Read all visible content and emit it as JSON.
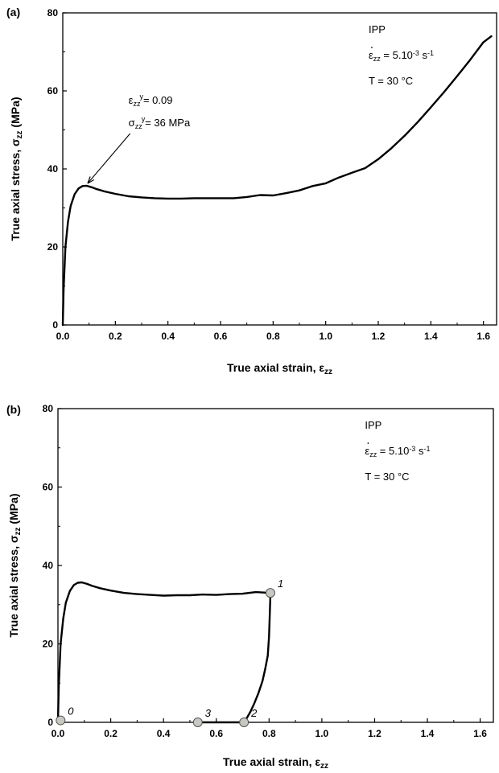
{
  "chart_data": [
    {
      "type": "line",
      "panel_label": "(a)",
      "xlabel": "True axial strain, ε",
      "xlabel_sub": "zz",
      "ylabel": "True axial stress, σ",
      "ylabel_sub": "zz",
      "ylabel_unit": " (MPa)",
      "xlim": [
        0,
        1.65
      ],
      "ylim": [
        0,
        80
      ],
      "xticks": [
        "0.0",
        "0.2",
        "0.4",
        "0.6",
        "0.8",
        "1.0",
        "1.2",
        "1.4",
        "1.6"
      ],
      "xtick_values": [
        0,
        0.2,
        0.4,
        0.6,
        0.8,
        1.0,
        1.2,
        1.4,
        1.6
      ],
      "yticks": [
        "0",
        "20",
        "40",
        "60",
        "80"
      ],
      "ytick_values": [
        0,
        20,
        40,
        60,
        80
      ],
      "grid": false,
      "legend": {
        "material": "IPP",
        "rate_prefix": "ε",
        "rate_sub": "zz",
        "rate_value": " = 5.10",
        "rate_exp": "-3",
        "rate_unit": " s",
        "rate_unit_exp": "-1",
        "temperature": "T = 30 °C"
      },
      "annotation": {
        "strain_symbol": "ε",
        "strain_sub": "zz",
        "strain_sup": "y",
        "strain_value": "= 0.09",
        "stress_symbol": "σ",
        "stress_sub": "zz",
        "stress_sup": "y",
        "stress_value": "= 36 MPa",
        "arrow_target": [
          0.09,
          36
        ]
      },
      "series": [
        {
          "x": [
            0.0,
            0.003,
            0.01,
            0.02,
            0.03,
            0.045,
            0.06,
            0.075,
            0.09,
            0.11,
            0.13,
            0.16,
            0.2,
            0.25,
            0.3,
            0.35,
            0.4,
            0.45,
            0.5,
            0.55,
            0.6,
            0.65,
            0.7,
            0.75,
            0.8,
            0.85,
            0.9,
            0.95,
            1.0,
            1.05,
            1.1,
            1.15,
            1.2,
            1.25,
            1.3,
            1.35,
            1.4,
            1.45,
            1.5,
            1.55,
            1.6,
            1.63
          ],
          "y": [
            0.0,
            9.0,
            20.0,
            26.5,
            30.5,
            33.5,
            35.0,
            35.6,
            35.7,
            35.3,
            34.8,
            34.2,
            33.6,
            33.0,
            32.7,
            32.5,
            32.4,
            32.4,
            32.5,
            32.5,
            32.5,
            32.5,
            32.8,
            33.3,
            33.2,
            33.8,
            34.5,
            35.6,
            36.3,
            37.8,
            39.0,
            40.2,
            42.5,
            45.3,
            48.5,
            52.0,
            55.8,
            59.7,
            63.8,
            68.0,
            72.5,
            74.0
          ]
        }
      ]
    },
    {
      "type": "line",
      "panel_label": "(b)",
      "xlabel": "True axial strain, ε",
      "xlabel_sub": "zz",
      "ylabel": "True axial stress, σ",
      "ylabel_sub": "zz",
      "ylabel_unit": " (MPa)",
      "xlim": [
        0,
        1.65
      ],
      "ylim": [
        0,
        80
      ],
      "xticks": [
        "0.0",
        "0.2",
        "0.4",
        "0.6",
        "0.8",
        "1.0",
        "1.2",
        "1.4",
        "1.6"
      ],
      "xtick_values": [
        0,
        0.2,
        0.4,
        0.6,
        0.8,
        1.0,
        1.2,
        1.4,
        1.6
      ],
      "yticks": [
        "0",
        "20",
        "40",
        "60",
        "80"
      ],
      "ytick_values": [
        0,
        20,
        40,
        60,
        80
      ],
      "grid": false,
      "legend": {
        "material": "IPP",
        "rate_prefix": "ε",
        "rate_sub": "zz",
        "rate_value": " = 5.10",
        "rate_exp": "-3",
        "rate_unit": " s",
        "rate_unit_exp": "-1",
        "temperature": "T = 30 °C"
      },
      "series": [
        {
          "x": [
            0.0,
            0.003,
            0.01,
            0.02,
            0.03,
            0.045,
            0.06,
            0.075,
            0.09,
            0.11,
            0.13,
            0.16,
            0.2,
            0.25,
            0.3,
            0.35,
            0.4,
            0.45,
            0.5,
            0.55,
            0.6,
            0.65,
            0.7,
            0.75,
            0.8,
            0.805,
            0.8,
            0.795,
            0.785,
            0.775,
            0.76,
            0.745,
            0.73,
            0.715,
            0.705,
            0.65,
            0.6,
            0.53
          ],
          "y": [
            0.0,
            9.0,
            20.0,
            26.5,
            30.5,
            33.5,
            35.0,
            35.6,
            35.7,
            35.3,
            34.8,
            34.2,
            33.6,
            33.0,
            32.7,
            32.5,
            32.3,
            32.4,
            32.4,
            32.6,
            32.5,
            32.7,
            32.8,
            33.2,
            33.0,
            32.0,
            22.0,
            17.0,
            13.5,
            10.5,
            7.5,
            5.0,
            2.8,
            1.0,
            0.0,
            0.0,
            0.0,
            0.0
          ]
        }
      ],
      "markers": [
        {
          "label": "0",
          "x": 0.01,
          "y": 0.5
        },
        {
          "label": "1",
          "x": 0.805,
          "y": 33.0
        },
        {
          "label": "2",
          "x": 0.705,
          "y": 0.0
        },
        {
          "label": "3",
          "x": 0.53,
          "y": 0.0
        }
      ]
    }
  ]
}
